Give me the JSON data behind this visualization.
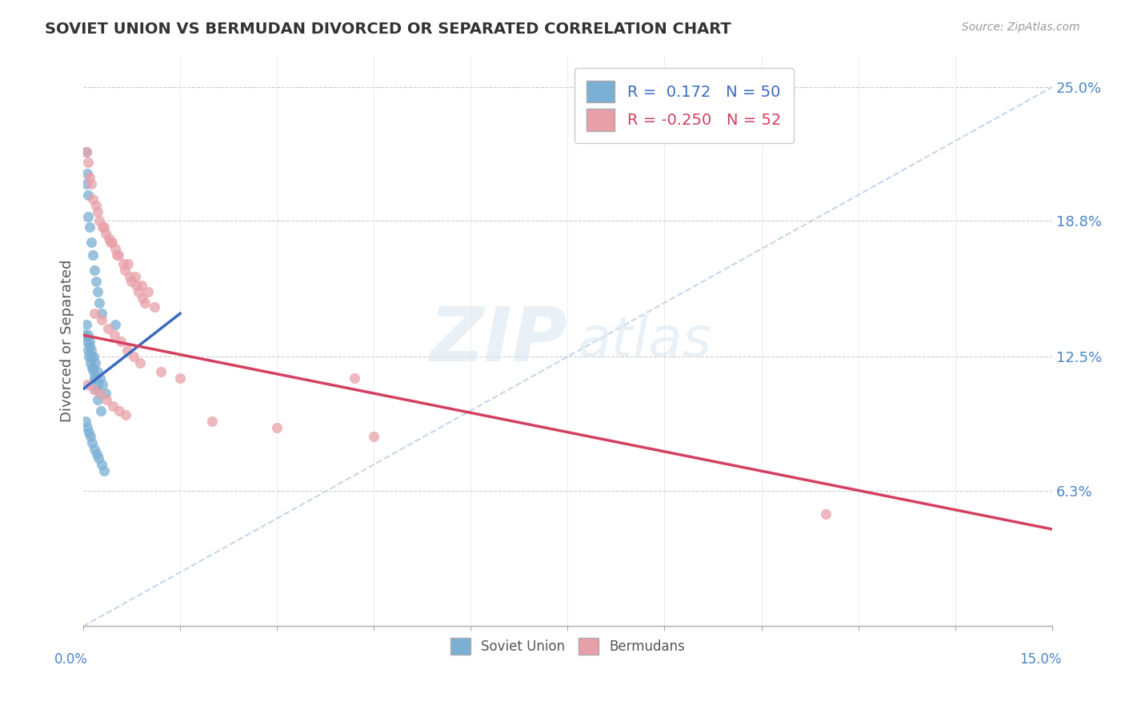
{
  "title": "SOVIET UNION VS BERMUDAN DIVORCED OR SEPARATED CORRELATION CHART",
  "source": "Source: ZipAtlas.com",
  "ylabel_label": "Divorced or Separated",
  "legend_label1": "Soviet Union",
  "legend_label2": "Bermudans",
  "r1": "0.172",
  "n1": "50",
  "r2": "-0.250",
  "n2": "52",
  "color_blue": "#7bafd4",
  "color_pink": "#e8a0a8",
  "color_blue_line": "#3a6abf",
  "color_pink_line": "#d44060",
  "color_dashed": "#b8cce4",
  "watermark_zip": "ZIP",
  "watermark_atlas": "atlas",
  "soviet_x": [
    0.05,
    0.08,
    0.1,
    0.12,
    0.15,
    0.18,
    0.2,
    0.22,
    0.25,
    0.28,
    0.05,
    0.07,
    0.1,
    0.13,
    0.16,
    0.19,
    0.22,
    0.26,
    0.3,
    0.35,
    0.05,
    0.06,
    0.08,
    0.1,
    0.12,
    0.15,
    0.18,
    0.2,
    0.23,
    0.27,
    0.04,
    0.06,
    0.09,
    0.11,
    0.14,
    0.17,
    0.21,
    0.24,
    0.28,
    0.32,
    0.03,
    0.05,
    0.07,
    0.09,
    0.11,
    0.14,
    0.16,
    0.19,
    0.22,
    0.5
  ],
  "soviet_y": [
    20.5,
    19.0,
    18.5,
    17.8,
    17.2,
    16.5,
    16.0,
    15.5,
    15.0,
    14.5,
    14.0,
    13.5,
    13.2,
    12.8,
    12.5,
    12.2,
    11.8,
    11.5,
    11.2,
    10.8,
    22.0,
    21.0,
    20.0,
    13.0,
    12.5,
    12.0,
    11.5,
    11.0,
    10.5,
    10.0,
    9.5,
    9.2,
    9.0,
    8.8,
    8.5,
    8.2,
    8.0,
    7.8,
    7.5,
    7.2,
    13.5,
    13.2,
    12.8,
    12.5,
    12.2,
    12.0,
    11.8,
    11.5,
    11.2,
    14.0
  ],
  "bermuda_x": [
    0.05,
    0.1,
    0.2,
    0.3,
    0.4,
    0.5,
    0.7,
    0.8,
    0.9,
    1.0,
    0.08,
    0.15,
    0.25,
    0.35,
    0.45,
    0.55,
    0.65,
    0.75,
    0.85,
    0.95,
    0.12,
    0.22,
    0.32,
    0.42,
    0.52,
    0.62,
    0.72,
    0.82,
    0.92,
    1.1,
    0.18,
    0.28,
    0.38,
    0.48,
    0.58,
    0.68,
    0.78,
    0.88,
    1.2,
    1.5,
    0.06,
    0.16,
    0.26,
    0.36,
    0.46,
    0.56,
    0.66,
    2.0,
    3.0,
    4.5,
    11.5,
    4.2
  ],
  "bermuda_y": [
    22.0,
    20.8,
    19.5,
    18.5,
    18.0,
    17.5,
    16.8,
    16.2,
    15.8,
    15.5,
    21.5,
    19.8,
    18.8,
    18.2,
    17.8,
    17.2,
    16.5,
    16.0,
    15.5,
    15.0,
    20.5,
    19.2,
    18.5,
    17.8,
    17.2,
    16.8,
    16.2,
    15.8,
    15.2,
    14.8,
    14.5,
    14.2,
    13.8,
    13.5,
    13.2,
    12.8,
    12.5,
    12.2,
    11.8,
    11.5,
    11.2,
    11.0,
    10.8,
    10.5,
    10.2,
    10.0,
    9.8,
    9.5,
    9.2,
    8.8,
    5.2,
    11.5
  ],
  "blue_line_x": [
    0.0,
    1.5
  ],
  "blue_line_y": [
    11.0,
    14.5
  ],
  "pink_line_x": [
    0.0,
    15.0
  ],
  "pink_line_y": [
    13.5,
    4.5
  ],
  "dash_line_x": [
    0.0,
    15.0
  ],
  "dash_line_y": [
    0.0,
    25.0
  ],
  "xlim": [
    0,
    15
  ],
  "ylim": [
    0,
    26.5
  ],
  "yticks": [
    0,
    6.3,
    12.5,
    18.8,
    25.0
  ],
  "yticklabels": [
    "",
    "6.3%",
    "12.5%",
    "18.8%",
    "25.0%"
  ]
}
